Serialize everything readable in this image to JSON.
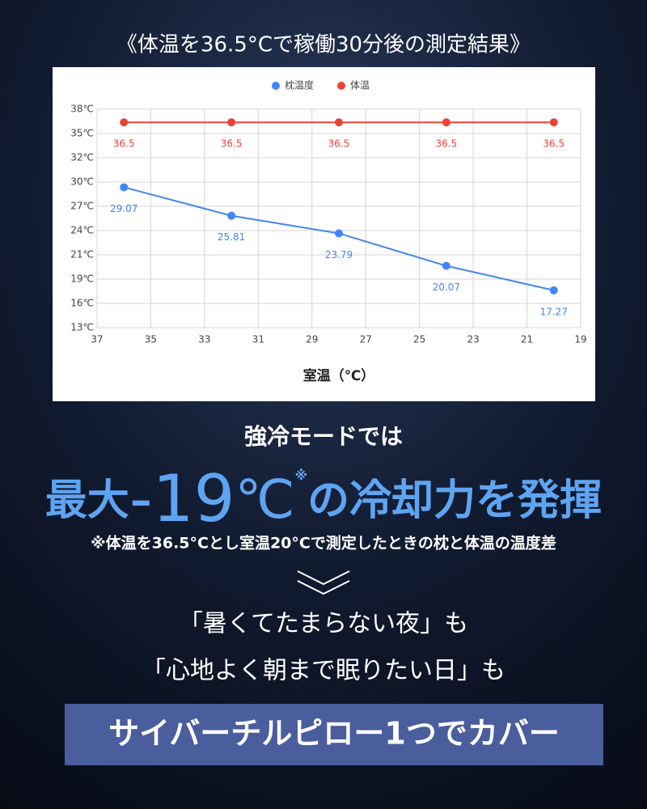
{
  "heading": "《体温を36.5°Cで稼働30分後の測定結果》",
  "chart_data": {
    "type": "line",
    "x": [
      36,
      32,
      28,
      24,
      20
    ],
    "series": [
      {
        "name": "枕温度",
        "color": "#4285f4",
        "values": [
          29.07,
          25.81,
          23.79,
          20.07,
          17.27
        ]
      },
      {
        "name": "体温",
        "color": "#ea4335",
        "values": [
          36.5,
          36.5,
          36.5,
          36.5,
          36.5
        ]
      }
    ],
    "xlim": [
      37,
      19
    ],
    "xticks": [
      37,
      35,
      33,
      31,
      29,
      27,
      25,
      23,
      21,
      19
    ],
    "ylim": [
      13,
      38
    ],
    "yticks": [
      {
        "value": 13,
        "label": "13℃"
      },
      {
        "value": 15.78,
        "label": "16℃"
      },
      {
        "value": 18.56,
        "label": "19℃"
      },
      {
        "value": 21.33,
        "label": "21℃"
      },
      {
        "value": 24.11,
        "label": "24℃"
      },
      {
        "value": 26.89,
        "label": "27℃"
      },
      {
        "value": 29.67,
        "label": "30℃"
      },
      {
        "value": 32.44,
        "label": "32℃"
      },
      {
        "value": 35.22,
        "label": "35℃"
      },
      {
        "value": 38,
        "label": "38℃"
      }
    ],
    "xlabel": "室温（℃）",
    "grid": true,
    "legend": "top"
  },
  "headline": {
    "lead": "強冷モードでは",
    "part1": "最大",
    "number": "-19",
    "unit": "℃",
    "mark": "※",
    "part2": "の冷却力を発揮"
  },
  "note": "※体温を36.5°Cとし室温20°Cで測定したときの枕と体温の温度差",
  "lines": [
    "「暑くてたまらない夜」も",
    "「心地よく朝まで眠りたい日」も"
  ],
  "button": "サイバーチルピロー1つでカバー"
}
